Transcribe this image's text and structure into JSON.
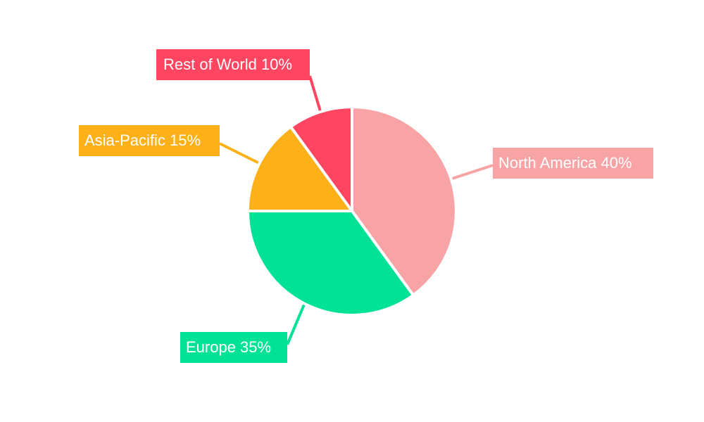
{
  "chart_data": {
    "type": "pie",
    "title": "",
    "categories": [
      "North America",
      "Europe",
      "Asia-Pacific",
      "Rest of World"
    ],
    "values": [
      40,
      35,
      15,
      10
    ],
    "colors": [
      "#f8a3a5",
      "#00e396",
      "#feb019",
      "#ff4560"
    ],
    "labels": [
      "North America 40%",
      "Europe 35%",
      "Asia-Pacific 15%",
      "Rest of World 10%"
    ],
    "start_angle": "top, clockwise",
    "legend": "none"
  }
}
